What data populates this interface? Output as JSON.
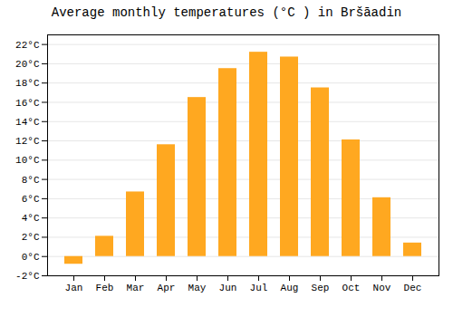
{
  "chart_data": {
    "type": "bar",
    "title": "Average monthly temperatures (°C ) in Bršāadin",
    "categories": [
      "Jan",
      "Feb",
      "Mar",
      "Apr",
      "May",
      "Jun",
      "Jul",
      "Aug",
      "Sep",
      "Oct",
      "Nov",
      "Dec"
    ],
    "values": [
      -0.8,
      2.1,
      6.7,
      11.6,
      16.5,
      19.5,
      21.2,
      20.7,
      17.5,
      12.1,
      6.1,
      1.4
    ],
    "color": "#FFA820",
    "ylim": [
      -2,
      23
    ],
    "yticks": [
      {
        "value": -2,
        "label": "-2°C"
      },
      {
        "value": 0,
        "label": "0°C"
      },
      {
        "value": 2,
        "label": "2°C"
      },
      {
        "value": 4,
        "label": "4°C"
      },
      {
        "value": 6,
        "label": "6°C"
      },
      {
        "value": 8,
        "label": "8°C"
      },
      {
        "value": 10,
        "label": "10°C"
      },
      {
        "value": 12,
        "label": "12°C"
      },
      {
        "value": 14,
        "label": "14°C"
      },
      {
        "value": 16,
        "label": "16°C"
      },
      {
        "value": 18,
        "label": "18°C"
      },
      {
        "value": 20,
        "label": "20°C"
      },
      {
        "value": 22,
        "label": "22°C"
      }
    ],
    "grid": true
  }
}
